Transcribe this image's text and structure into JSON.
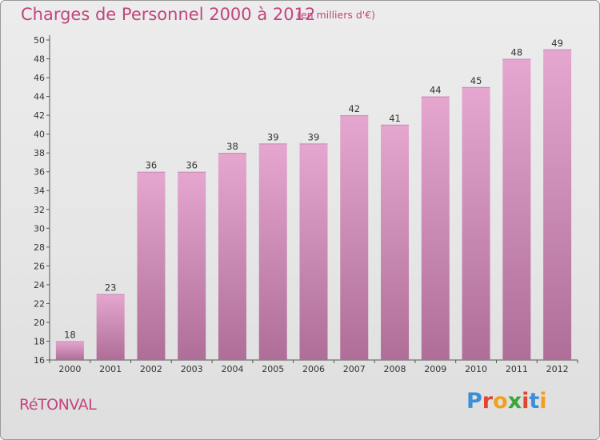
{
  "header": {
    "title": "Charges de Personnel 2000 à 2012",
    "subtitle": "(en milliers d'€)"
  },
  "footer": {
    "place": "RéTONVAL",
    "logo": [
      "P",
      "r",
      "o",
      "x",
      "i",
      "t",
      "i"
    ],
    "logo_colors": [
      "#3b8fd6",
      "#e2462f",
      "#f0a01e",
      "#3aa63a",
      "#e2462f",
      "#3b8fd6",
      "#f0a01e"
    ]
  },
  "colors": {
    "bar_top": "#e5a6cf",
    "bar_bottom": "#ae6e98",
    "axis": "#555555",
    "title": "#c2457e"
  },
  "chart_data": {
    "type": "bar",
    "categories": [
      "2000",
      "2001",
      "2002",
      "2003",
      "2004",
      "2005",
      "2006",
      "2007",
      "2008",
      "2009",
      "2010",
      "2011",
      "2012"
    ],
    "values": [
      18,
      23,
      36,
      36,
      38,
      39,
      39,
      42,
      41,
      44,
      45,
      48,
      49
    ],
    "title": "Charges de Personnel 2000 à 2012",
    "subtitle": "(en milliers d'€)",
    "ylim": [
      16,
      50
    ],
    "yticks": [
      16,
      18,
      20,
      22,
      24,
      26,
      28,
      30,
      32,
      34,
      36,
      38,
      40,
      42,
      44,
      46,
      48,
      50
    ],
    "grid": false,
    "legend": "none"
  }
}
